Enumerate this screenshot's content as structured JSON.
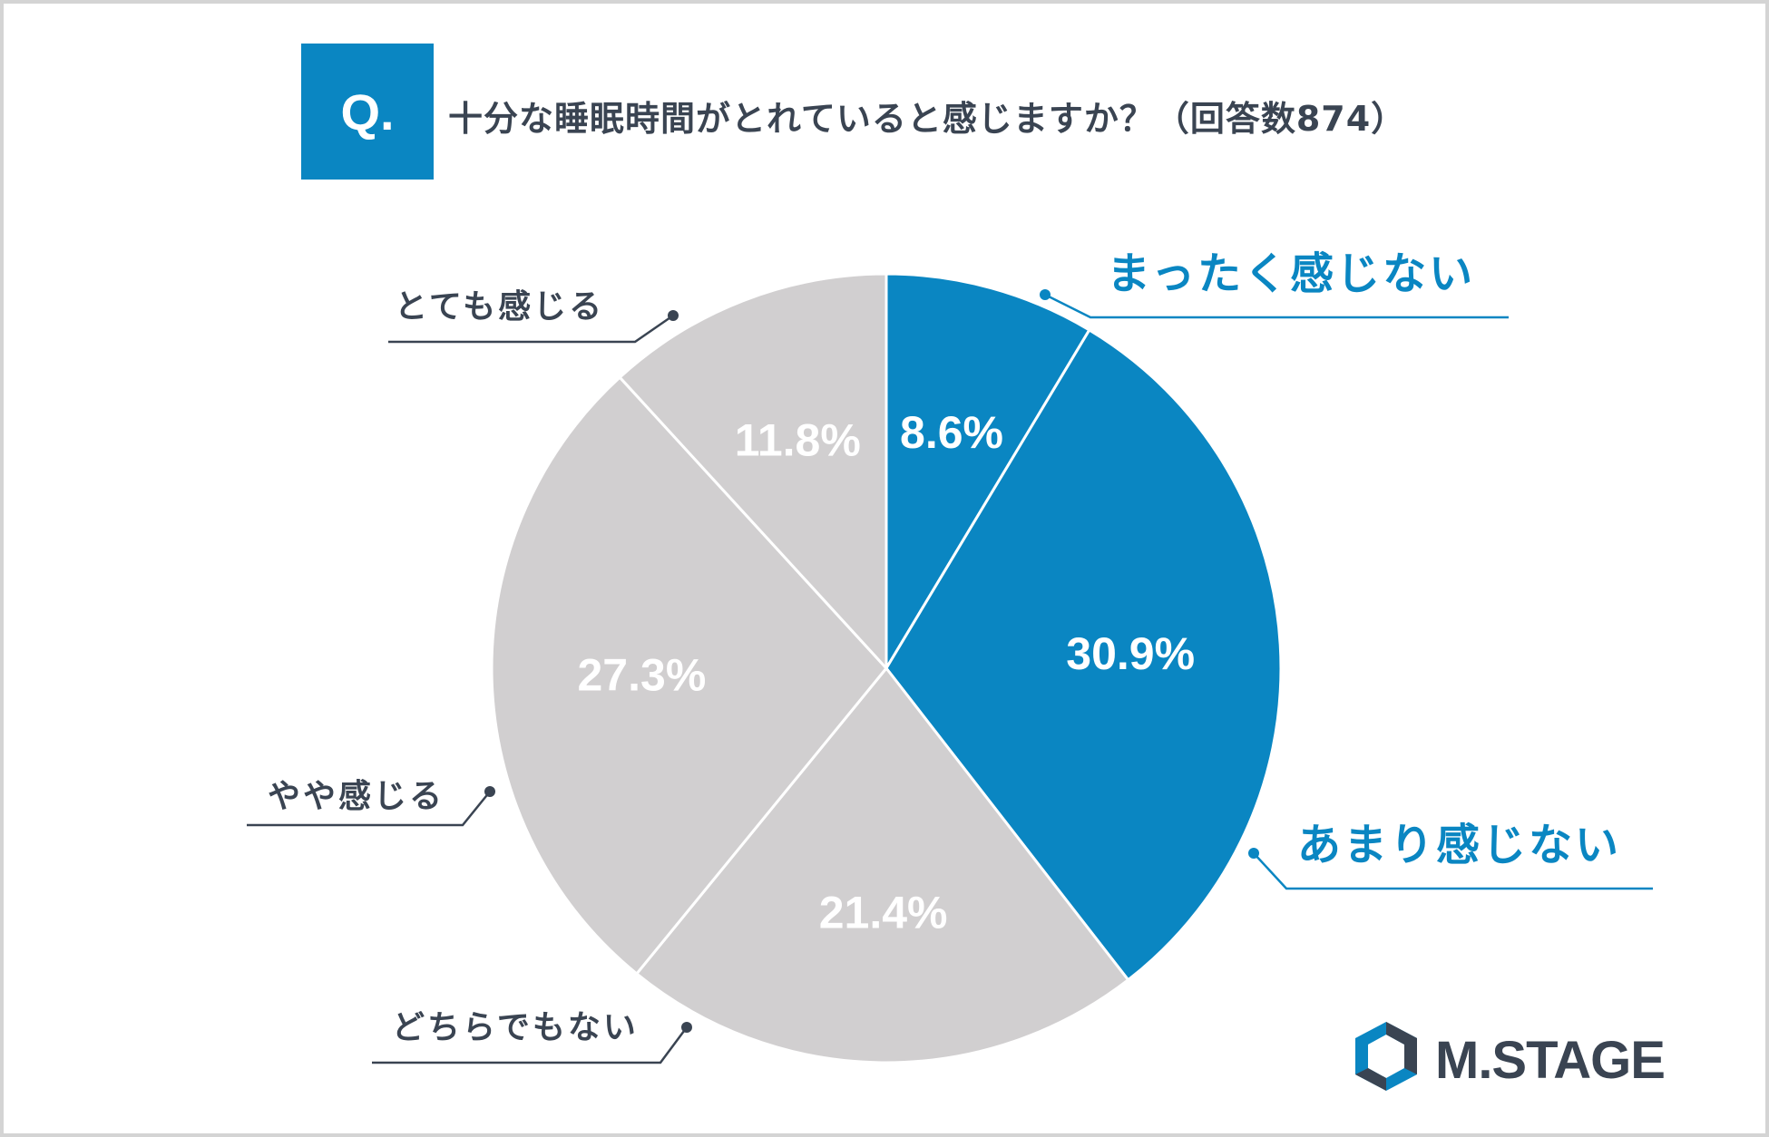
{
  "header": {
    "badge": "Q.",
    "question": "十分な睡眠時間がとれていると感じますか？（回答数874）"
  },
  "colors": {
    "accent": "#0a86c2",
    "neutral": "#d1cfd0",
    "text": "#3a4452",
    "frame": "#d4d4d4"
  },
  "chart_data": {
    "type": "pie",
    "start": "12 o'clock",
    "direction": "clockwise",
    "slices": [
      {
        "label": "まったく感じない",
        "value": 8.6,
        "display": "8.6%",
        "color": "#0a86c2",
        "label_color": "#0a86c2"
      },
      {
        "label": "あまり感じない",
        "value": 30.9,
        "display": "30.9%",
        "color": "#0a86c2",
        "label_color": "#0a86c2"
      },
      {
        "label": "どちらでもない",
        "value": 21.4,
        "display": "21.4%",
        "color": "#d1cfd0",
        "label_color": "#3a4452"
      },
      {
        "label": "やや感じる",
        "value": 27.3,
        "display": "27.3%",
        "color": "#d1cfd0",
        "label_color": "#3a4452"
      },
      {
        "label": "とても感じる",
        "value": 11.8,
        "display": "11.8%",
        "color": "#d1cfd0",
        "label_color": "#3a4452"
      }
    ]
  },
  "brand": {
    "logo_icon": "m-stage-hexagon-icon",
    "name": "M.STAGE"
  }
}
